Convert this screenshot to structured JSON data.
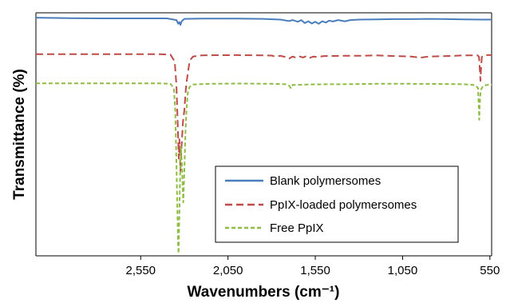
{
  "chart_data": {
    "type": "line",
    "title": "",
    "xlabel": "Wavenumbers (cm⁻¹)",
    "ylabel": "Transmittance (%)",
    "x_reversed": true,
    "xlim": [
      3150,
      540
    ],
    "ylim": [
      0,
      100
    ],
    "xticks": [
      2550,
      2050,
      1550,
      1050,
      550
    ],
    "xtick_labels": [
      "2,550",
      "2,050",
      "1,550",
      "1,050",
      "550"
    ],
    "yticks_shown": false,
    "grid": false,
    "legend_position": "bottom-right",
    "series": [
      {
        "name": "Blank polymersomes",
        "color": "#4a7ebb",
        "dash": "solid",
        "points": [
          [
            3150,
            98
          ],
          [
            2950,
            97.8
          ],
          [
            2750,
            97.7
          ],
          [
            2400,
            97.7
          ],
          [
            2345,
            97
          ],
          [
            2335,
            95.5
          ],
          [
            2328,
            96.2
          ],
          [
            2322,
            95
          ],
          [
            2315,
            96.5
          ],
          [
            2300,
            97.5
          ],
          [
            2200,
            97.6
          ],
          [
            2000,
            97.6
          ],
          [
            1850,
            97.5
          ],
          [
            1750,
            97.2
          ],
          [
            1700,
            96.6
          ],
          [
            1680,
            97
          ],
          [
            1650,
            96.3
          ],
          [
            1630,
            97
          ],
          [
            1610,
            95.8
          ],
          [
            1590,
            96.5
          ],
          [
            1570,
            95.6
          ],
          [
            1550,
            96.3
          ],
          [
            1530,
            95.5
          ],
          [
            1510,
            96.5
          ],
          [
            1490,
            96
          ],
          [
            1470,
            96.8
          ],
          [
            1450,
            96.4
          ],
          [
            1420,
            97
          ],
          [
            1380,
            96.5
          ],
          [
            1350,
            97
          ],
          [
            1300,
            97.2
          ],
          [
            1200,
            97.3
          ],
          [
            1100,
            97.4
          ],
          [
            1000,
            97.4
          ],
          [
            900,
            97.5
          ],
          [
            800,
            97.4
          ],
          [
            700,
            97.3
          ],
          [
            600,
            97.2
          ],
          [
            540,
            97.2
          ]
        ]
      },
      {
        "name": "PpIX-loaded polymersomes",
        "color": "#be4b48",
        "dash": "dashed",
        "points": [
          [
            3150,
            83
          ],
          [
            2950,
            83
          ],
          [
            2800,
            83
          ],
          [
            2450,
            83
          ],
          [
            2380,
            82.8
          ],
          [
            2355,
            80
          ],
          [
            2345,
            70
          ],
          [
            2338,
            55
          ],
          [
            2332,
            40
          ],
          [
            2328,
            48
          ],
          [
            2322,
            35
          ],
          [
            2316,
            45
          ],
          [
            2308,
            55
          ],
          [
            2300,
            60
          ],
          [
            2292,
            68
          ],
          [
            2286,
            72
          ],
          [
            2280,
            75
          ],
          [
            2272,
            79
          ],
          [
            2262,
            81
          ],
          [
            2250,
            82
          ],
          [
            2200,
            82.5
          ],
          [
            2000,
            82.6
          ],
          [
            1850,
            82.5
          ],
          [
            1800,
            82.4
          ],
          [
            1780,
            82
          ],
          [
            1750,
            82.3
          ],
          [
            1720,
            81.8
          ],
          [
            1700,
            81.2
          ],
          [
            1680,
            82
          ],
          [
            1660,
            81.5
          ],
          [
            1640,
            82
          ],
          [
            1620,
            81.6
          ],
          [
            1600,
            82.2
          ],
          [
            1580,
            81.5
          ],
          [
            1560,
            82
          ],
          [
            1540,
            81.8
          ],
          [
            1500,
            82.2
          ],
          [
            1400,
            82.3
          ],
          [
            1300,
            82.3
          ],
          [
            1200,
            82.5
          ],
          [
            1100,
            82.2
          ],
          [
            1000,
            82
          ],
          [
            950,
            81.5
          ],
          [
            900,
            82
          ],
          [
            800,
            82.2
          ],
          [
            750,
            82.3
          ],
          [
            700,
            82.5
          ],
          [
            650,
            82.5
          ],
          [
            620,
            82.5
          ],
          [
            612,
            81.8
          ],
          [
            608,
            77
          ],
          [
            604,
            72
          ],
          [
            600,
            78
          ],
          [
            596,
            81.8
          ],
          [
            585,
            82.5
          ],
          [
            560,
            82.6
          ],
          [
            540,
            82.6
          ]
        ]
      },
      {
        "name": "Free PpIX",
        "color": "#8fbc44",
        "dash": "dashed",
        "points": [
          [
            3150,
            71
          ],
          [
            2950,
            71
          ],
          [
            2700,
            71
          ],
          [
            2450,
            71
          ],
          [
            2380,
            70.8
          ],
          [
            2360,
            69
          ],
          [
            2352,
            60
          ],
          [
            2346,
            40
          ],
          [
            2340,
            20
          ],
          [
            2336,
            5
          ],
          [
            2333,
            1
          ],
          [
            2330,
            12
          ],
          [
            2325,
            30
          ],
          [
            2320,
            45
          ],
          [
            2314,
            38
          ],
          [
            2306,
            22
          ],
          [
            2300,
            35
          ],
          [
            2294,
            50
          ],
          [
            2288,
            60
          ],
          [
            2280,
            67
          ],
          [
            2270,
            69.5
          ],
          [
            2250,
            70.5
          ],
          [
            2150,
            70.8
          ],
          [
            2000,
            70.9
          ],
          [
            1800,
            70.8
          ],
          [
            1720,
            70.6
          ],
          [
            1700,
            70
          ],
          [
            1690,
            69
          ],
          [
            1680,
            70.3
          ],
          [
            1650,
            70.3
          ],
          [
            1600,
            70.5
          ],
          [
            1500,
            70.6
          ],
          [
            1400,
            70.6
          ],
          [
            1300,
            70.7
          ],
          [
            1200,
            70.8
          ],
          [
            1000,
            70.8
          ],
          [
            800,
            70.7
          ],
          [
            700,
            70.6
          ],
          [
            650,
            70.4
          ],
          [
            630,
            70
          ],
          [
            618,
            69
          ],
          [
            614,
            62
          ],
          [
            611,
            56
          ],
          [
            608,
            62
          ],
          [
            604,
            67
          ],
          [
            600,
            68.5
          ],
          [
            590,
            69.8
          ],
          [
            575,
            70.2
          ],
          [
            560,
            70.4
          ],
          [
            540,
            70.4
          ]
        ]
      }
    ]
  }
}
